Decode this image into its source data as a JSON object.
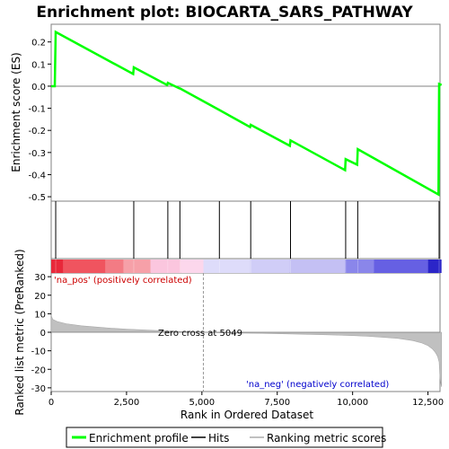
{
  "chart_data": {
    "type": "line",
    "title": "Enrichment plot: BIOCARTA_SARS_PATHWAY",
    "xlabel": "Rank in Ordered Dataset",
    "ylabel_top": "Enrichment score (ES)",
    "ylabel_bottom": "Ranked list metric (PreRanked)",
    "xlim": [
      0,
      12900
    ],
    "es_ylim": [
      -0.52,
      0.28
    ],
    "metric_ylim": [
      -32,
      32
    ],
    "x_ticks": [
      0,
      2500,
      5000,
      7500,
      10000,
      12500
    ],
    "x_tick_labels": [
      "0",
      "2,500",
      "5,000",
      "7,500",
      "10,000",
      "12,500"
    ],
    "es_ticks": [
      0.2,
      0.1,
      0.0,
      -0.1,
      -0.2,
      -0.3,
      -0.4,
      -0.5
    ],
    "es_tick_labels": [
      "0.2",
      "0.1",
      "0.0",
      "-0.1",
      "-0.2",
      "-0.3",
      "-0.4",
      "-0.5"
    ],
    "metric_ticks": [
      30,
      20,
      10,
      0,
      -10,
      -20,
      -30
    ],
    "metric_tick_labels": [
      "30",
      "20",
      "10",
      "0",
      "-10",
      "-20",
      "-30"
    ],
    "es_curve": {
      "x": [
        0,
        120,
        150,
        2720,
        2740,
        3850,
        3870,
        4250,
        4270,
        5580,
        6600,
        6620,
        7920,
        7940,
        9750,
        9770,
        10150,
        10170,
        12850,
        12870,
        12950
      ],
      "y": [
        0.0,
        0.0,
        0.245,
        0.055,
        0.085,
        0.005,
        0.015,
        -0.01,
        -0.01,
        -0.108,
        -0.185,
        -0.175,
        -0.27,
        -0.245,
        -0.38,
        -0.33,
        -0.355,
        -0.285,
        -0.49,
        0.01,
        0.005
      ]
    },
    "hits": [
      150,
      2740,
      3870,
      4270,
      5580,
      6620,
      7940,
      9770,
      10170,
      12870
    ],
    "heatmap_segments": [
      {
        "x0": 0,
        "x1": 400,
        "color": "#e8283a"
      },
      {
        "x0": 400,
        "x1": 1800,
        "color": "#f0545f"
      },
      {
        "x0": 1800,
        "x1": 2400,
        "color": "#f37b84"
      },
      {
        "x0": 2400,
        "x1": 3300,
        "color": "#f6a0a8"
      },
      {
        "x0": 3300,
        "x1": 4300,
        "color": "#fbc6de"
      },
      {
        "x0": 4300,
        "x1": 5050,
        "color": "#fcd7ec"
      },
      {
        "x0": 5050,
        "x1": 6600,
        "color": "#dedcfa"
      },
      {
        "x0": 6600,
        "x1": 7900,
        "color": "#d0cdf7"
      },
      {
        "x0": 7900,
        "x1": 9750,
        "color": "#c4c0f4"
      },
      {
        "x0": 9750,
        "x1": 10700,
        "color": "#8a86ea"
      },
      {
        "x0": 10700,
        "x1": 12500,
        "color": "#6660e3"
      },
      {
        "x0": 12500,
        "x1": 12950,
        "color": "#2b25c8"
      }
    ],
    "metric_curve": {
      "x": [
        0,
        50,
        200,
        500,
        1000,
        1500,
        2000,
        2500,
        3000,
        3500,
        4000,
        4500,
        5049,
        5500,
        6000,
        7000,
        8000,
        9000,
        10000,
        10500,
        11000,
        11500,
        12000,
        12300,
        12500,
        12650,
        12750,
        12820,
        12870,
        12900,
        12950
      ],
      "y": [
        9.0,
        7.0,
        5.8,
        4.6,
        3.5,
        2.8,
        2.2,
        1.7,
        1.3,
        0.9,
        0.6,
        0.3,
        0.0,
        -0.25,
        -0.4,
        -0.6,
        -0.9,
        -1.3,
        -1.8,
        -2.2,
        -2.7,
        -3.3,
        -4.5,
        -5.8,
        -7.2,
        -9.0,
        -11.0,
        -13.0,
        -16.0,
        -25.0,
        -29.5
      ]
    },
    "zero_cross_label": "Zero cross at 5049",
    "zero_cross_x": 5049,
    "pos_label": "'na_pos' (positively correlated)",
    "neg_label": "'na_neg' (negatively correlated)",
    "legend": [
      {
        "label": "Enrichment profile",
        "color": "#00ff00"
      },
      {
        "label": "Hits",
        "color": "#000000"
      },
      {
        "label": "Ranking metric scores",
        "color": "#c0c0c0"
      }
    ],
    "colors": {
      "es": "#00ff00",
      "pos_text": "#cc0000",
      "neg_text": "#0000cc",
      "metric_fill": "#c0c0c0"
    }
  }
}
